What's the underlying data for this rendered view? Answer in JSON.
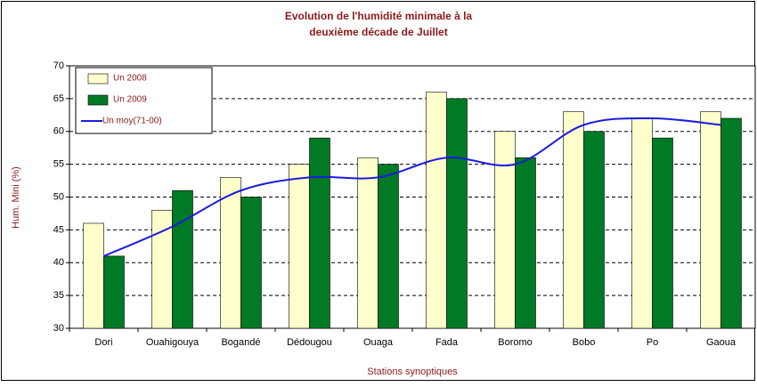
{
  "chart_data": {
    "type": "bar",
    "title": [
      "Evolution de l'humidité minimale à la",
      "deuxième décade de Juillet"
    ],
    "y_label": "Hum. Mini (%)",
    "x_label": "Stations synoptiques",
    "categories": [
      "Dori",
      "Ouahigouya",
      "Bogandé",
      "Dédougou",
      "Ouaga",
      "Fada",
      "Boromo",
      "Bobo",
      "Po",
      "Gaoua"
    ],
    "series": [
      {
        "name": "Un 2008",
        "type": "bar",
        "color": "#ffffcc",
        "values": [
          46,
          48,
          53,
          55,
          56,
          66,
          60,
          63,
          62,
          63
        ]
      },
      {
        "name": "Un 2009",
        "type": "bar",
        "color": "#007a25",
        "values": [
          41,
          51,
          50,
          59,
          55,
          65,
          56,
          60,
          59,
          62
        ]
      },
      {
        "name": "Un moy(71-00)",
        "type": "line",
        "color": "#1c1cdc",
        "values": [
          41,
          45.5,
          51,
          53,
          53,
          56,
          55,
          61,
          62,
          61
        ]
      }
    ],
    "ylim": [
      30,
      70
    ],
    "yticks": [
      30,
      35,
      40,
      45,
      50,
      55,
      60,
      65,
      70
    ],
    "grid": true,
    "legend": "top-left"
  }
}
